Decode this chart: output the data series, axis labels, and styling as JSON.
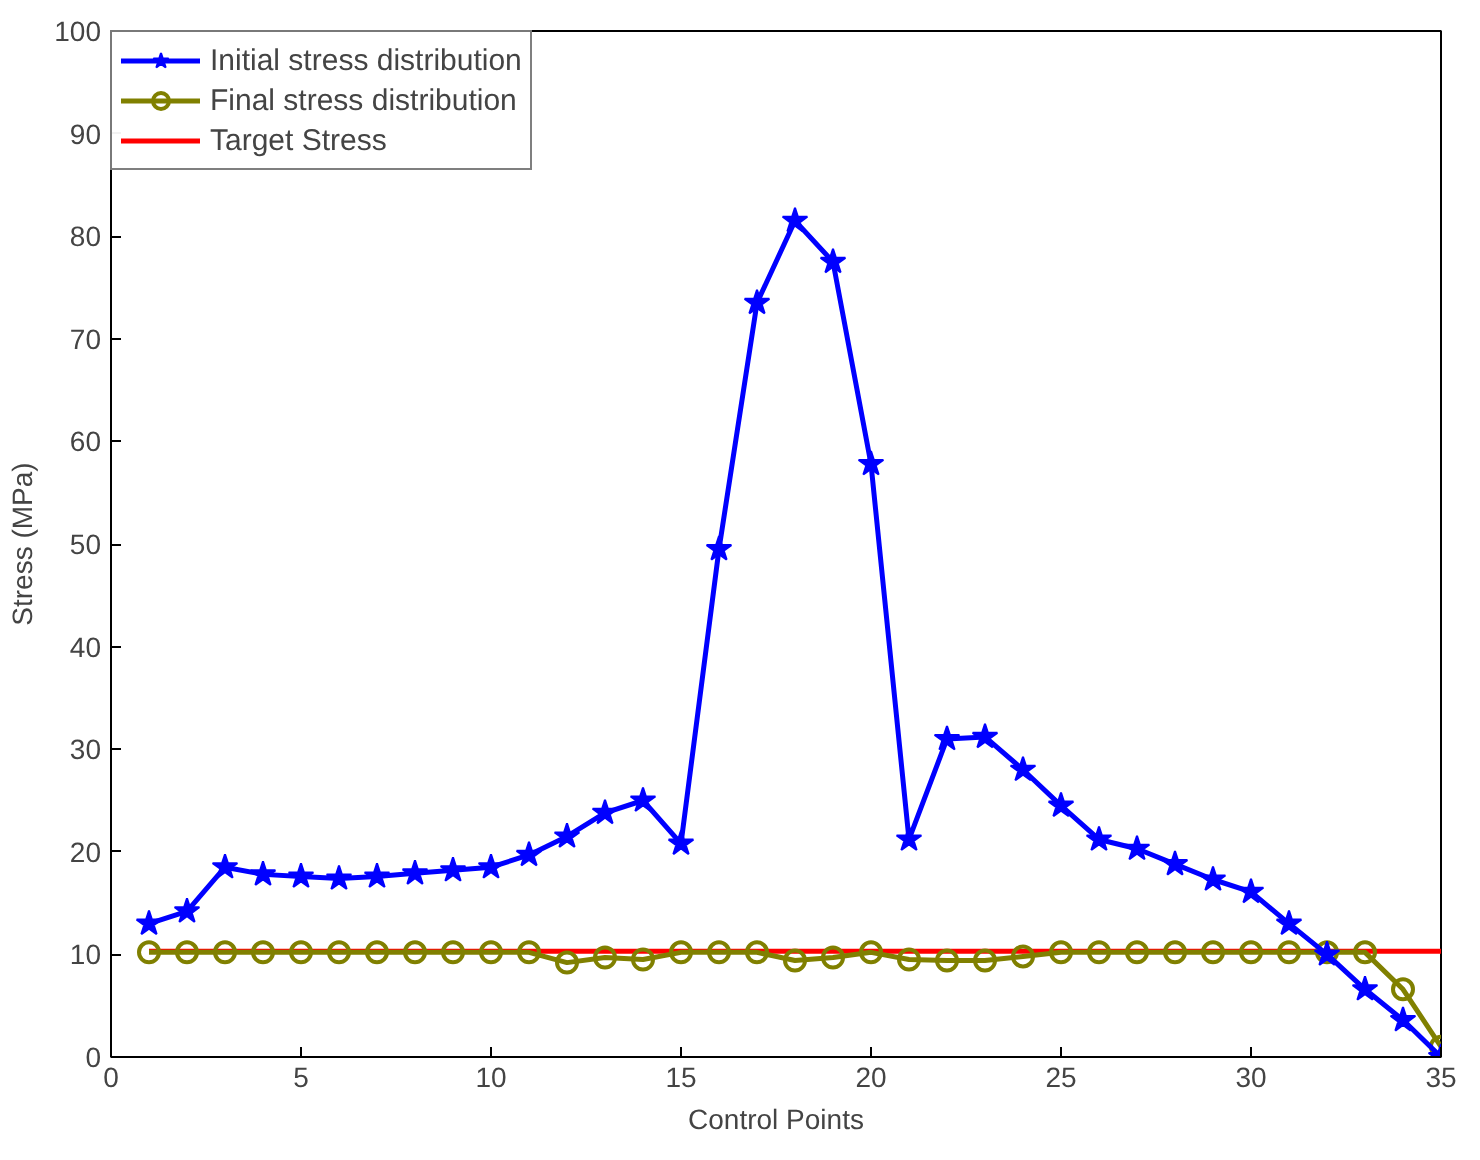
{
  "chart_data": {
    "type": "line",
    "xlabel": "Control Points",
    "ylabel": "Stress (MPa)",
    "xlim": [
      0,
      35
    ],
    "ylim": [
      0,
      100
    ],
    "xticks": [
      0,
      5,
      10,
      15,
      20,
      25,
      30,
      35
    ],
    "yticks": [
      0,
      10,
      20,
      30,
      40,
      50,
      60,
      70,
      80,
      90,
      100
    ],
    "grid": false,
    "legend": "top left",
    "x": [
      1,
      2,
      3,
      4,
      5,
      6,
      7,
      8,
      9,
      10,
      11,
      12,
      13,
      14,
      15,
      16,
      17,
      18,
      19,
      20,
      21,
      22,
      23,
      24,
      25,
      26,
      27,
      28,
      29,
      30,
      31,
      32,
      33,
      34,
      35
    ],
    "series": [
      {
        "name": "Initial stress distribution",
        "color": "#0000ff",
        "marker": "star",
        "values": [
          13,
          14.2,
          18.5,
          17.8,
          17.6,
          17.4,
          17.6,
          17.9,
          18.2,
          18.5,
          19.7,
          21.5,
          23.8,
          25,
          20.8,
          49.5,
          73.5,
          81.5,
          77.5,
          57.8,
          21.2,
          31,
          31.2,
          28,
          24.5,
          21.2,
          20.3,
          18.8,
          17.3,
          16.1,
          13,
          10,
          6.6,
          3.6,
          0
        ]
      },
      {
        "name": "Final stress distribution",
        "color": "#808000",
        "marker": "circle",
        "values": [
          10.2,
          10.2,
          10.2,
          10.2,
          10.2,
          10.2,
          10.2,
          10.2,
          10.2,
          10.2,
          10.2,
          9.2,
          9.7,
          9.5,
          10.2,
          10.2,
          10.2,
          9.4,
          9.7,
          10.2,
          9.5,
          9.4,
          9.4,
          9.8,
          10.2,
          10.2,
          10.2,
          10.2,
          10.2,
          10.2,
          10.2,
          10.2,
          10.2,
          6.6,
          1
        ]
      },
      {
        "name": "Target Stress",
        "color": "#ff0000",
        "marker": "none",
        "x": [
          1,
          35
        ],
        "values": [
          10.3,
          10.3
        ]
      }
    ]
  }
}
